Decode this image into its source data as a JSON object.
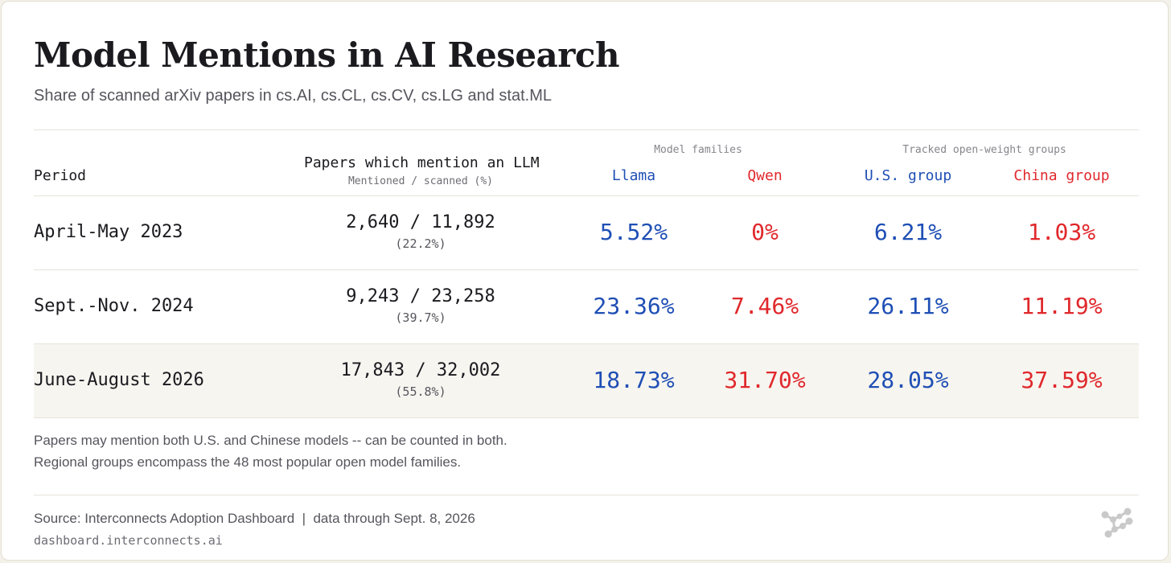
{
  "title": "Model Mentions in AI Research",
  "subtitle": "Share of scanned arXiv papers in cs.AI, cs.CL, cs.CV, cs.LG and stat.ML",
  "colors": {
    "us": "#1f4fb5",
    "china": "#e0282c"
  },
  "table": {
    "headers": {
      "period": "Period",
      "papers": "Papers which mention an LLM",
      "papers_sub": "Mentioned / scanned (%)",
      "group_families": "Model families",
      "group_openweight": "Tracked open-weight groups",
      "llama": "Llama",
      "qwen": "Qwen",
      "us_group": "U.S. group",
      "china_group": "China group"
    },
    "rows": [
      {
        "period": "April-May 2023",
        "papers": "2,640 / 11,892",
        "pct": "(22.2%)",
        "llama": "5.52%",
        "qwen": "0%",
        "us": "6.21%",
        "china": "1.03%"
      },
      {
        "period": "Sept.-Nov. 2024",
        "papers": "9,243 / 23,258",
        "pct": "(39.7%)",
        "llama": "23.36%",
        "qwen": "7.46%",
        "us": "26.11%",
        "china": "11.19%"
      },
      {
        "period": "June-August 2026",
        "papers": "17,843 / 32,002",
        "pct": "(55.8%)",
        "llama": "18.73%",
        "qwen": "31.70%",
        "us": "28.05%",
        "china": "37.59%"
      }
    ]
  },
  "notes": [
    "Papers may mention both U.S. and Chinese models -- can be counted in both.",
    "Regional groups encompass the 48 most popular open model families."
  ],
  "footer": {
    "source": "Source: Interconnects Adoption Dashboard  |  data through Sept. 8, 2026",
    "url": "dashboard.interconnects.ai",
    "logo_icon": "interconnects-logo-icon"
  }
}
